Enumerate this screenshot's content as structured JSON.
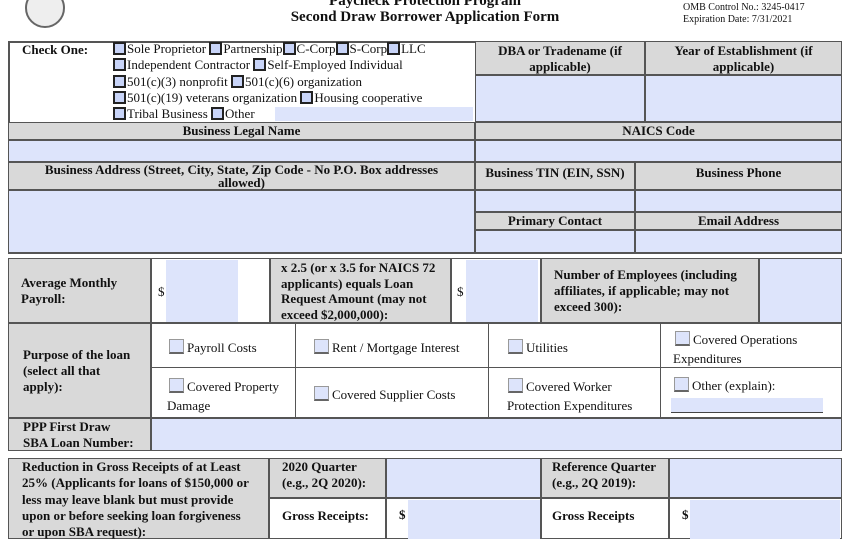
{
  "header": {
    "title": "Paycheck Protection Program",
    "subtitle": "Second Draw Borrower Application Form",
    "omb": "OMB Control No.: 3245-0417",
    "expiration": "Expiration Date: 7/31/2021"
  },
  "entity": {
    "label": "Check One:",
    "options": [
      "Sole Proprietor",
      "Partnership",
      "C-Corp",
      "S-Corp",
      "LLC",
      "Independent Contractor",
      "Self-Employed Individual",
      "501(c)(3) nonprofit",
      "501(c)(6) organization",
      "501(c)(19) veterans organization",
      "Housing cooperative",
      "Tribal Business",
      "Other"
    ]
  },
  "fields": {
    "dba": "DBA or Tradename (if applicable)",
    "year": "Year of Establishment (if applicable)",
    "legal_name": "Business Legal Name",
    "naics": "NAICS Code",
    "address": "Business Address (Street, City, State, Zip Code - No P.O. Box addresses allowed)",
    "tin": "Business TIN (EIN, SSN)",
    "phone": "Business Phone",
    "contact": "Primary Contact",
    "email": "Email Address"
  },
  "loan": {
    "payroll": "Average Monthly Payroll:",
    "dollar": "$",
    "multiplier": "x 2.5 (or x 3.5 for NAICS 72 applicants) equals Loan Request Amount (may not exceed $2,000,000):",
    "employees": "Number of Employees (including affiliates, if applicable; may not exceed 300):"
  },
  "purpose": {
    "label": "Purpose of the loan (select all that apply):",
    "options": [
      "Payroll Costs",
      "Rent / Mortgage Interest",
      "Utilities",
      "Covered Operations Expenditures",
      "Covered Property Damage",
      "Covered Supplier Costs",
      "Covered Worker Protection Expenditures",
      "Other (explain):"
    ]
  },
  "ppp": {
    "label": "PPP First Draw SBA Loan Number:"
  },
  "reduction": {
    "label": "Reduction in Gross Receipts of at Least 25% (Applicants for loans of $150,000 or less may leave blank but must provide upon or before seeking loan forgiveness or upon SBA request):",
    "quarter2020": "2020 Quarter (e.g., 2Q 2020):",
    "reference": "Reference Quarter (e.g., 2Q 2019):",
    "gross1": "Gross Receipts:",
    "gross2": "Gross Receipts",
    "dollar": "$"
  }
}
